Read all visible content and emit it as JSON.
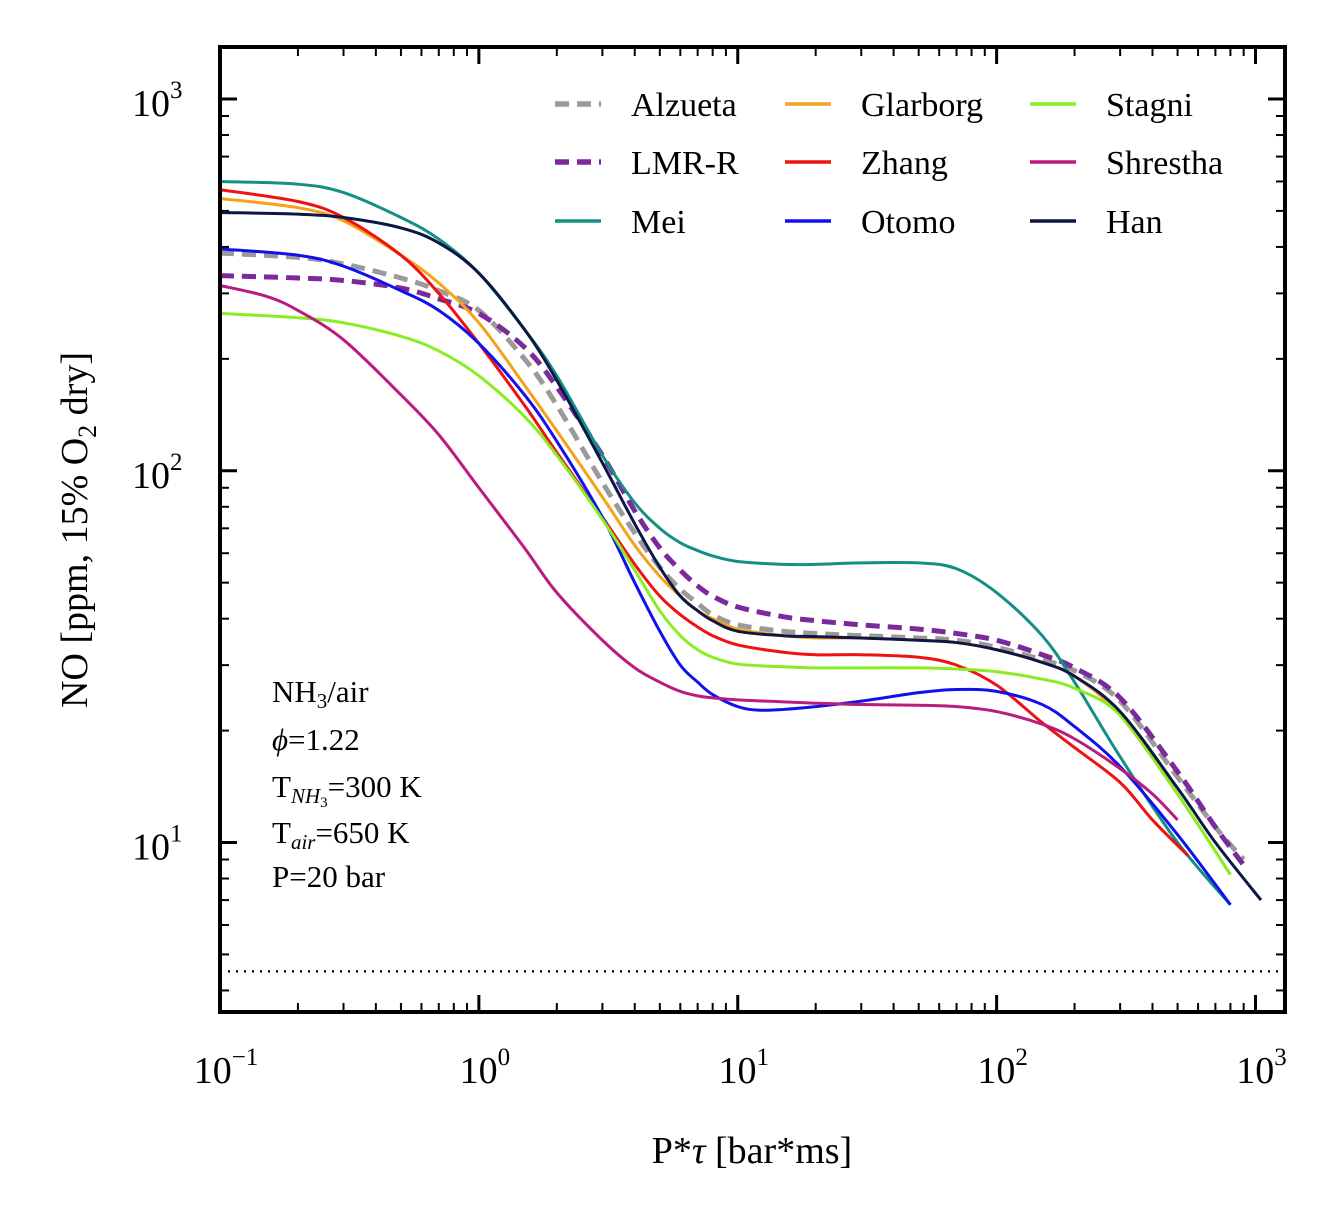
{
  "chart_data": {
    "type": "line",
    "xlabel": {
      "base": "P*",
      "symbol": "τ",
      "rest": " [bar*ms]"
    },
    "ylabel": {
      "pre": "NO [ppm, 15% O",
      "sub": "2",
      "post": " dry]"
    },
    "xscale": "log",
    "yscale": "log",
    "xlim": [
      0.1,
      1300
    ],
    "ylim": [
      3.5,
      1380
    ],
    "x_ticks": [
      {
        "value": 0.1,
        "base": "10",
        "exp": "−1"
      },
      {
        "value": 1,
        "base": "10",
        "exp": "0"
      },
      {
        "value": 10,
        "base": "10",
        "exp": "1"
      },
      {
        "value": 100,
        "base": "10",
        "exp": "2"
      },
      {
        "value": 1000,
        "base": "10",
        "exp": "3"
      }
    ],
    "y_ticks": [
      {
        "value": 10,
        "base": "10",
        "exp": "1"
      },
      {
        "value": 100,
        "base": "10",
        "exp": "2"
      },
      {
        "value": 1000,
        "base": "10",
        "exp": "3"
      }
    ],
    "grid": false,
    "legend": {
      "placement": "top-right",
      "columns": 3
    },
    "reference_line": {
      "y": 4.5,
      "style": "dotted",
      "color": "#000000"
    },
    "annotation": {
      "placement": "bottom-left",
      "lines": [
        {
          "pre": "NH",
          "sub": "3",
          "post": "/air"
        },
        {
          "symbol": "ϕ",
          "post": "=1.22"
        },
        {
          "pre": "T",
          "sub": "NH",
          "sub2": "3",
          "post": "=300 K"
        },
        {
          "pre": "T",
          "sub": "air",
          "post": "=650 K"
        },
        {
          "pre": "P=20 bar"
        }
      ]
    },
    "series": [
      {
        "name": "Alzueta",
        "color": "#9a9a9a",
        "dash": "dashed",
        "width": 5,
        "x": [
          0.1,
          0.2,
          0.3,
          0.5,
          0.7,
          1,
          1.5,
          2,
          3,
          4,
          5,
          6,
          7,
          8,
          10,
          15,
          20,
          30,
          50,
          70,
          100,
          150,
          200,
          300,
          500,
          700,
          900
        ],
        "y": [
          385,
          375,
          360,
          330,
          305,
          270,
          200,
          150,
          93,
          68,
          55,
          48,
          44,
          41,
          38.5,
          37,
          36.5,
          36,
          35.5,
          35,
          33.5,
          31,
          29,
          24,
          15,
          11,
          9
        ]
      },
      {
        "name": "LMR-R",
        "color": "#7b2a9c",
        "dash": "dashed",
        "width": 5,
        "x": [
          0.1,
          0.2,
          0.3,
          0.5,
          0.7,
          1,
          1.5,
          2,
          3,
          4,
          5,
          6,
          7,
          8,
          10,
          15,
          20,
          30,
          50,
          70,
          100,
          150,
          200,
          300,
          500,
          700,
          900
        ],
        "y": [
          335,
          330,
          325,
          310,
          290,
          265,
          215,
          168,
          110,
          78,
          62,
          54,
          49,
          46,
          43,
          40.5,
          39.5,
          38.5,
          37.5,
          36.5,
          35,
          32,
          29.5,
          24.5,
          15.5,
          11,
          8.7
        ]
      },
      {
        "name": "Mei",
        "color": "#138f86",
        "dash": "solid",
        "width": 3,
        "x": [
          0.1,
          0.2,
          0.3,
          0.5,
          0.7,
          1,
          1.5,
          2,
          3,
          4,
          5,
          6,
          7,
          8,
          10,
          15,
          20,
          30,
          50,
          70,
          100,
          150,
          200,
          300,
          500,
          800
        ],
        "y": [
          600,
          590,
          560,
          480,
          420,
          340,
          240,
          180,
          110,
          82,
          70,
          64,
          61,
          59,
          57,
          56,
          56,
          56.5,
          56.5,
          54.5,
          47,
          36,
          27,
          17,
          10,
          6.8
        ]
      },
      {
        "name": "Glarborg",
        "color": "#f5a21a",
        "dash": "solid",
        "width": 3,
        "x": [
          0.1,
          0.2,
          0.3,
          0.5,
          0.7,
          1,
          1.5,
          2,
          3,
          4,
          5,
          6,
          7,
          8,
          10,
          15,
          20,
          30,
          50,
          70,
          100,
          150,
          200,
          300,
          500,
          800
        ],
        "y": [
          540,
          510,
          470,
          380,
          320,
          250,
          170,
          128,
          85,
          63,
          52,
          46,
          42,
          40,
          37.5,
          36,
          35.5,
          35.5,
          35,
          34.5,
          33,
          30.5,
          28,
          22,
          13.5,
          8.2
        ]
      },
      {
        "name": "Zhang",
        "color": "#ee1212",
        "dash": "solid",
        "width": 3,
        "x": [
          0.1,
          0.2,
          0.3,
          0.5,
          0.7,
          1,
          1.5,
          2,
          3,
          4,
          5,
          6,
          7,
          8,
          10,
          15,
          20,
          30,
          50,
          70,
          100,
          150,
          200,
          300,
          400,
          550
        ],
        "y": [
          570,
          530,
          480,
          380,
          300,
          220,
          150,
          112,
          75,
          56,
          46,
          41,
          38,
          36,
          34,
          32.5,
          32,
          32,
          31.5,
          30,
          26.5,
          21,
          18,
          14.5,
          11.5,
          9.2
        ]
      },
      {
        "name": "Otomo",
        "color": "#1111ee",
        "dash": "solid",
        "width": 3,
        "x": [
          0.1,
          0.2,
          0.3,
          0.5,
          0.7,
          1,
          1.5,
          2,
          3,
          4,
          5,
          6,
          7,
          8,
          10,
          12,
          15,
          20,
          30,
          50,
          70,
          100,
          150,
          200,
          300,
          500,
          800
        ],
        "y": [
          395,
          380,
          355,
          305,
          270,
          220,
          160,
          120,
          75,
          50,
          37,
          30,
          27,
          25,
          23.2,
          22.7,
          22.8,
          23.2,
          24,
          25.3,
          25.8,
          25.5,
          23.5,
          20.5,
          16,
          10.5,
          6.8
        ]
      },
      {
        "name": "Stagni",
        "color": "#88ee22",
        "dash": "solid",
        "width": 3,
        "x": [
          0.1,
          0.2,
          0.3,
          0.5,
          0.7,
          1,
          1.5,
          2,
          3,
          4,
          5,
          6,
          7,
          8,
          10,
          15,
          20,
          30,
          50,
          70,
          100,
          150,
          200,
          300,
          500,
          800
        ],
        "y": [
          265,
          258,
          250,
          230,
          210,
          180,
          140,
          110,
          74,
          54,
          42,
          36,
          33,
          31.5,
          30.2,
          29.7,
          29.5,
          29.5,
          29.5,
          29.3,
          28.8,
          27.5,
          26,
          22,
          13.5,
          8.2
        ]
      },
      {
        "name": "Shrestha",
        "color": "#bb1a7e",
        "dash": "solid",
        "width": 3,
        "x": [
          0.1,
          0.15,
          0.2,
          0.3,
          0.5,
          0.7,
          1,
          1.5,
          2,
          3,
          4,
          5,
          6,
          7,
          8,
          10,
          15,
          20,
          30,
          50,
          70,
          100,
          150,
          200,
          300,
          400,
          500
        ],
        "y": [
          315,
          295,
          270,
          225,
          160,
          125,
          90,
          62,
          47,
          35,
          29.5,
          27,
          25.5,
          24.8,
          24.5,
          24.2,
          23.9,
          23.7,
          23.5,
          23.4,
          23.2,
          22.5,
          20.8,
          19,
          15.8,
          13.5,
          11.5
        ]
      },
      {
        "name": "Han",
        "color": "#0d1745",
        "dash": "solid",
        "width": 3,
        "x": [
          0.1,
          0.2,
          0.3,
          0.5,
          0.7,
          1,
          1.5,
          2,
          3,
          4,
          5,
          6,
          7,
          8,
          10,
          15,
          20,
          30,
          50,
          70,
          100,
          150,
          200,
          300,
          500,
          700,
          1050
        ],
        "y": [
          495,
          490,
          480,
          450,
          410,
          340,
          240,
          175,
          105,
          72,
          55,
          46,
          42,
          39.5,
          37,
          36,
          35.8,
          35.5,
          35,
          34.5,
          33,
          30.5,
          28,
          22.5,
          14,
          10,
          7
        ]
      }
    ]
  }
}
